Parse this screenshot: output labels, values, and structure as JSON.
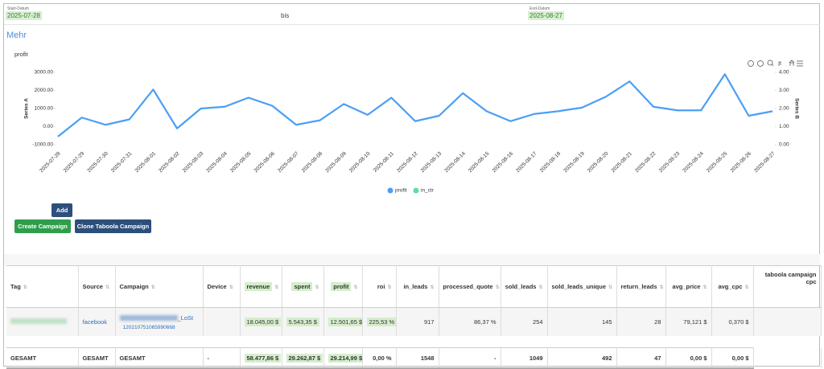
{
  "filters": {
    "start_label": "Start-Datum",
    "start_value": "2025-07-28",
    "separator": "bis",
    "end_label": "End-Datum",
    "end_value": "2025-08-27"
  },
  "more_link": "Mehr",
  "chart_data": {
    "type": "line",
    "title": "profit",
    "y_label": "Series A",
    "y2_label": "Series B",
    "categories": [
      "2025-07-28",
      "2025-07-29",
      "2025-07-30",
      "2025-07-31",
      "2025-08-01",
      "2025-08-02",
      "2025-08-03",
      "2025-08-04",
      "2025-08-05",
      "2025-08-06",
      "2025-08-07",
      "2025-08-08",
      "2025-08-09",
      "2025-08-10",
      "2025-08-11",
      "2025-08-12",
      "2025-08-13",
      "2025-08-14",
      "2025-08-15",
      "2025-08-16",
      "2025-08-17",
      "2025-08-18",
      "2025-08-19",
      "2025-08-20",
      "2025-08-21",
      "2025-08-22",
      "2025-08-23",
      "2025-08-24",
      "2025-08-25",
      "2025-08-26",
      "2025-08-27"
    ],
    "series": [
      {
        "name": "profit",
        "color": "#4a9ff5",
        "values": [
          -550,
          500,
          100,
          400,
          2050,
          -100,
          1000,
          1100,
          1600,
          1150,
          100,
          350,
          1250,
          650,
          1600,
          300,
          600,
          1850,
          850,
          300,
          700,
          850,
          1050,
          1650,
          2500,
          1100,
          900,
          900,
          2900,
          600,
          850
        ]
      },
      {
        "name": "in_ctr",
        "color": "#5ce0a0",
        "axis": "y2",
        "values": [
          null,
          null,
          null,
          null,
          null,
          null,
          null,
          null,
          null,
          null,
          null,
          null,
          null,
          null,
          null,
          null,
          null,
          null,
          null,
          null,
          null,
          null,
          null,
          null,
          null,
          null,
          null,
          null,
          null,
          null,
          null
        ]
      }
    ],
    "ylim": [
      -1000,
      3000
    ],
    "yticks": [
      {
        "value": -1000,
        "label": "-1000.00"
      },
      {
        "value": 0,
        "label": "0.00"
      },
      {
        "value": 1000,
        "label": "1000.00"
      },
      {
        "value": 2000,
        "label": "2000.00"
      },
      {
        "value": 3000,
        "label": "3000.00"
      }
    ],
    "y2lim": [
      0,
      4
    ],
    "y2ticks": [
      {
        "value": 0,
        "label": "0.00"
      },
      {
        "value": 1,
        "label": "1.00"
      },
      {
        "value": 2,
        "label": "2.00"
      },
      {
        "value": 3,
        "label": "3.00"
      },
      {
        "value": 4,
        "label": "4.00"
      }
    ],
    "grid": false,
    "legend": "bottom"
  },
  "buttons": {
    "add": "Add",
    "create": "Create Campaign",
    "clone": "Clone Taboola Campaign"
  },
  "table": {
    "headers": [
      "Tag",
      "Source",
      "Campaign",
      "Device",
      "revenue",
      "spent",
      "profit",
      "roi",
      "in_leads",
      "processed_quote",
      "sold_leads",
      "sold_leads_unique",
      "return_leads",
      "avg_price",
      "avg_cpc",
      "taboola campaign cpc"
    ],
    "rows": [
      [
        null,
        "facebook",
        "_LoSt",
        null,
        "18.045,00 $",
        "5.543,35 $",
        "12.501,65 $",
        "225,53 %",
        "917",
        "86,37 %",
        "254",
        "145",
        "28",
        "79,121 $",
        "0,370 $",
        null
      ]
    ],
    "campaign_id": "120210751065990668",
    "total": [
      "GESAMT",
      "GESAMT",
      "GESAMT",
      "-",
      "58.477,86 $",
      "29.262,87 $",
      "29.214,99 $",
      "0,00 %",
      "1548",
      "-",
      "1049",
      "492",
      "47",
      "0,00 $",
      "0,00 $",
      null
    ]
  }
}
